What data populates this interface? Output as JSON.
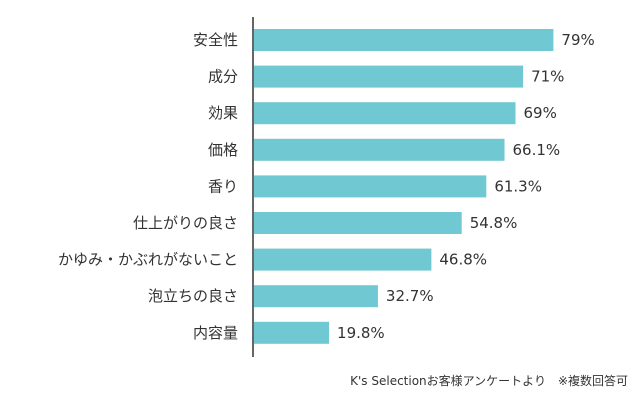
{
  "chart_data": {
    "type": "bar",
    "orientation": "horizontal",
    "title": "",
    "xlabel": "",
    "ylabel": "",
    "xlim": [
      0,
      100
    ],
    "categories": [
      "安全性",
      "成分",
      "効果",
      "価格",
      "香り",
      "仕上がりの良さ",
      "かゆみ・かぶれがないこと",
      "泡立ちの良さ",
      "内容量"
    ],
    "values": [
      79,
      71,
      69,
      66.1,
      61.3,
      54.8,
      46.8,
      32.7,
      19.8
    ],
    "value_labels": [
      "79%",
      "71%",
      "69%",
      "66.1%",
      "61.3%",
      "54.8%",
      "46.8%",
      "32.7%",
      "19.8%"
    ],
    "grid": false,
    "bar_color": "#70c8d2",
    "axis_color": "#333333"
  },
  "footnote": "K's Selectionお客様アンケートより　※複数回答可"
}
